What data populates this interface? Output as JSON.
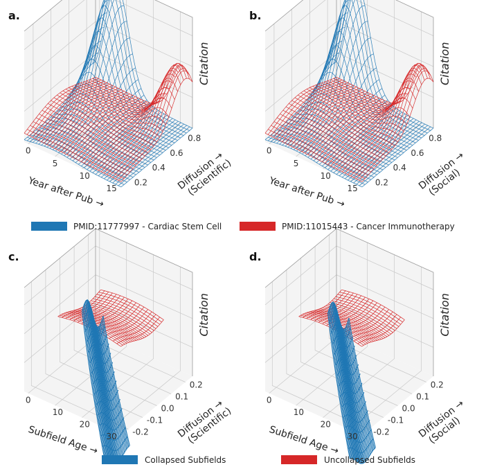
{
  "colors": {
    "blue": "#1f77b4",
    "red": "#d62728"
  },
  "legends": [
    {
      "label": "PMID:11777997 - Cardiac Stem Cell",
      "color": "#1f77b4"
    },
    {
      "label": "PMID:11015443 - Cancer Immunotherapy",
      "color": "#d62728"
    },
    {
      "label": "Collapsed Subfields",
      "color": "#1f77b4"
    },
    {
      "label": "Uncollapsed Subfields",
      "color": "#d62728"
    }
  ],
  "chart_data": [
    {
      "panel": "a.",
      "type": "surface",
      "xlabel": "Year after Pub",
      "ylabel": [
        "Diffusion",
        "(Scientific)"
      ],
      "zlabel": "Citation",
      "xticks": [
        "0",
        "5",
        "10",
        "15"
      ],
      "yticks": [
        "0.2",
        "0.4",
        "0.6",
        "0.8"
      ],
      "xlim": [
        0,
        15
      ],
      "ylim": [
        0.1,
        0.9
      ],
      "series": [
        {
          "name": "PMID:11777997 - Cardiac Stem Cell",
          "peak": {
            "x": 3,
            "y": 0.8
          }
        },
        {
          "name": "PMID:11015443 - Cancer Immunotherapy",
          "peak": {
            "x": 14,
            "y": 0.8
          }
        }
      ]
    },
    {
      "panel": "b.",
      "type": "surface",
      "xlabel": "Year after Pub",
      "ylabel": [
        "Diffusion",
        "(Social)"
      ],
      "zlabel": "Citation",
      "xticks": [
        "0",
        "5",
        "10",
        "15"
      ],
      "yticks": [
        "0.2",
        "0.4",
        "0.6",
        "0.8"
      ],
      "xlim": [
        0,
        15
      ],
      "ylim": [
        0.1,
        0.9
      ],
      "series": [
        {
          "name": "PMID:11777997 - Cardiac Stem Cell",
          "peak": {
            "x": 3,
            "y": 0.8
          }
        },
        {
          "name": "PMID:11015443 - Cancer Immunotherapy",
          "peak": {
            "x": 14,
            "y": 0.8
          }
        }
      ]
    },
    {
      "panel": "c.",
      "type": "surface",
      "xlabel": "Subfield Age",
      "ylabel": [
        "Diffusion",
        "(Scientific)"
      ],
      "zlabel": "Citation",
      "xticks": [
        "0",
        "10",
        "20",
        "30"
      ],
      "yticks": [
        "-0.2",
        "-0.1",
        "0.0",
        "0.1",
        "0.2"
      ],
      "xlim": [
        0,
        35
      ],
      "ylim": [
        -0.2,
        0.2
      ],
      "series": [
        {
          "name": "Collapsed Subfields"
        },
        {
          "name": "Uncollapsed Subfields"
        }
      ]
    },
    {
      "panel": "d.",
      "type": "surface",
      "xlabel": "Subfield Age",
      "ylabel": [
        "Diffusion",
        "(Social)"
      ],
      "zlabel": "Citation",
      "xticks": [
        "0",
        "10",
        "20",
        "30"
      ],
      "yticks": [
        "-0.2",
        "-0.1",
        "0.0",
        "0.1",
        "0.2"
      ],
      "xlim": [
        0,
        35
      ],
      "ylim": [
        -0.2,
        0.2
      ],
      "series": [
        {
          "name": "Collapsed Subfields"
        },
        {
          "name": "Uncollapsed Subfields"
        }
      ]
    }
  ]
}
